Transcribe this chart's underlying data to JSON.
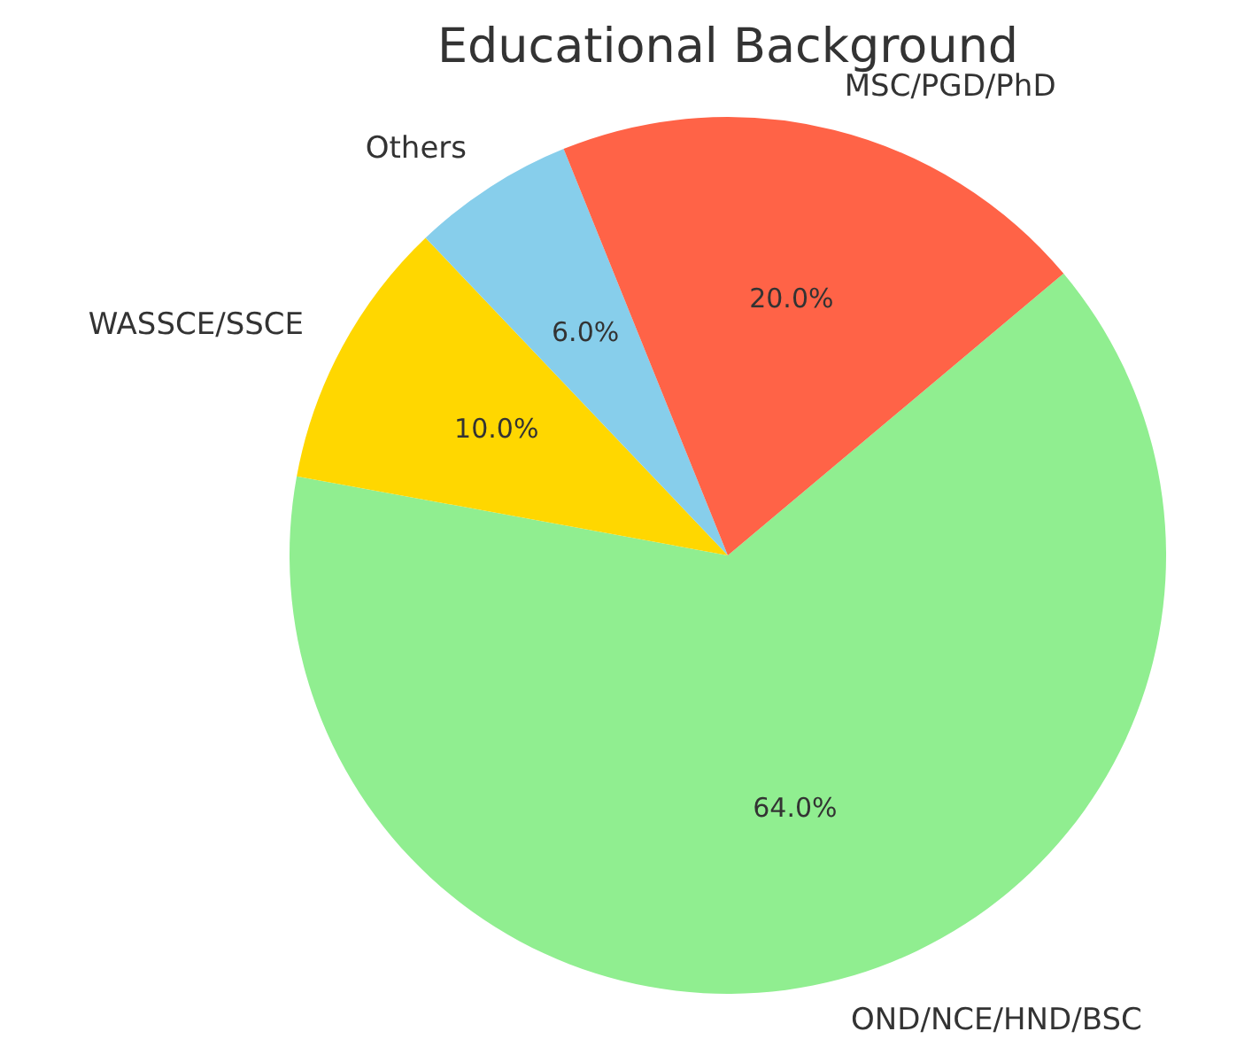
{
  "chart_data": {
    "type": "pie",
    "title": "Educational Background",
    "categories": [
      "OND/NCE/HND/BSC",
      "WASSCE/SSCE",
      "Others",
      "MSC/PGD/PhD"
    ],
    "values": [
      64,
      10,
      6,
      20
    ],
    "colors": [
      "#90ee90",
      "#ffd700",
      "#87ceeb",
      "#ff6347"
    ],
    "value_labels": [
      "64.0%",
      "10.0%",
      "6.0%",
      "20.0%"
    ],
    "legend": false
  }
}
